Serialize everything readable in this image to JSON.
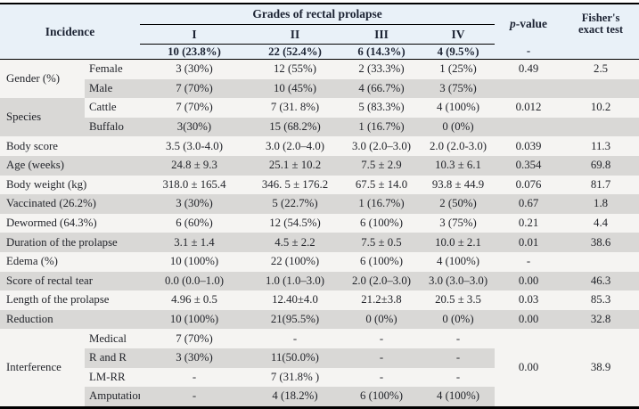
{
  "colors": {
    "header_bg": "#e9f1f8",
    "row_light": "#f5f4f2",
    "row_dark": "#d9d8d6",
    "border": "#000000",
    "header_ink": "#1c2333",
    "body_ink": "#23252b"
  },
  "table": {
    "header": {
      "incidence_label": "Incidence",
      "grades_label": "Grades of rectal prolapse",
      "grade_columns": [
        "I",
        "II",
        "III",
        "IV"
      ],
      "grade_counts": [
        "10 (23.8%)",
        "22 (52.4%)",
        "6 (14.3%)",
        "4 (9.5%)"
      ],
      "grade_counts_p": "-",
      "grade_counts_fisher": "",
      "p_italic": "p",
      "p_rest": "-value",
      "fisher_line1": "Fisher's",
      "fisher_line2": "exact test"
    },
    "rows": [
      {
        "group": {
          "label": "Gender (%)",
          "span": 2,
          "shade": "a"
        },
        "sub": "Female",
        "values": [
          "3 (30%)",
          "12 (55%)",
          "2 (33.3%)",
          "1 (25%)"
        ],
        "p": "0.49",
        "fisher": "2.5",
        "shade": "a"
      },
      {
        "sub": "Male",
        "values": [
          "7 (70%)",
          "10 (45%)",
          "4 (66.7%)",
          "3 (75%)"
        ],
        "p": "",
        "fisher": "",
        "shade": "b"
      },
      {
        "group": {
          "label": "Species",
          "span": 2,
          "shade": "b"
        },
        "sub": "Cattle",
        "values": [
          "7 (70%)",
          "7 (31. 8%)",
          "5 (83.3%)",
          "4 (100%)"
        ],
        "p": "0.012",
        "fisher": "10.2",
        "shade": "a"
      },
      {
        "sub": "Buffalo",
        "values": [
          "3(30%)",
          "15 (68.2%)",
          "1 (16.7%)",
          "0 (0%)"
        ],
        "p": "",
        "fisher": "",
        "shade": "b"
      },
      {
        "label": "Body score",
        "values": [
          "3.5 (3.0-4.0)",
          "3.0 (2.0–4.0)",
          "3.0 (2.0–3.0)",
          "2.0 (2.0-3.0)"
        ],
        "p": "0.039",
        "fisher": "11.3",
        "shade": "a"
      },
      {
        "label": "Age (weeks)",
        "values": [
          "24.8 ± 9.3",
          "25.1 ± 10.2",
          "7.5 ± 2.9",
          "10.3 ± 6.1"
        ],
        "p": "0.354",
        "fisher": "69.8",
        "shade": "b"
      },
      {
        "label": "Body weight (kg)",
        "values": [
          "318.0 ± 165.4",
          "346. 5 ± 176.2",
          "67.5 ± 14.0",
          "93.8 ± 44.9"
        ],
        "p": "0.076",
        "fisher": "81.7",
        "shade": "a"
      },
      {
        "label": "Vaccinated (26.2%)",
        "values": [
          "3 (30%)",
          "5 (22.7%)",
          "1 (16.7%)",
          "2 (50%)"
        ],
        "p": "0.67",
        "fisher": "1.8",
        "shade": "b"
      },
      {
        "label": "Dewormed (64.3%)",
        "values": [
          "6 (60%)",
          "12 (54.5%)",
          "6 (100%)",
          "3 (75%)"
        ],
        "p": "0.21",
        "fisher": "4.4",
        "shade": "a"
      },
      {
        "label": "Duration of the prolapse",
        "values": [
          "3.1 ± 1.4",
          "4.5 ± 2.2",
          "7.5 ± 0.5",
          "10.0 ± 2.1"
        ],
        "p": "0.01",
        "fisher": "38.6",
        "shade": "b"
      },
      {
        "label": "Edema (%)",
        "values": [
          "10 (100%)",
          "22 (100%)",
          "6 (100%)",
          "4 (100%)"
        ],
        "p": "-",
        "fisher": "",
        "shade": "a"
      },
      {
        "label": "Score of rectal tear",
        "values": [
          "0.0 (0.0–1.0)",
          "1.0 (1.0–3.0)",
          "2.0 (2.0–3.0)",
          "3.0 (3.0–3.0)"
        ],
        "p": "0.00",
        "fisher": "46.3",
        "shade": "b"
      },
      {
        "label": "Length of the prolapse",
        "values": [
          "4.96 ± 0.5",
          "12.40±4.0",
          "21.2±3.8",
          "20.5 ± 3.5"
        ],
        "p": "0.03",
        "fisher": "85.3",
        "shade": "a"
      },
      {
        "label": "Reduction",
        "values": [
          "10 (100%)",
          "21(95.5%)",
          "0 (0%)",
          "0 (0%)"
        ],
        "p": "0.00",
        "fisher": "32.8",
        "shade": "b"
      },
      {
        "group": {
          "label": "Interference",
          "span": 4,
          "shade": "a"
        },
        "sub": "Medical",
        "values": [
          "7 (70%)",
          "-",
          "-",
          "-"
        ],
        "pf_span": {
          "p": "0.00",
          "fisher": "38.9",
          "span": 4
        },
        "shade": "a"
      },
      {
        "sub": "R and R",
        "values": [
          "3 (30%)",
          "11(50.0%)",
          "-",
          "-"
        ],
        "no_pf": true,
        "shade": "b"
      },
      {
        "sub": "LM-RR",
        "values": [
          "-",
          "7 (31.8% )",
          "-",
          "-"
        ],
        "no_pf": true,
        "shade": "a"
      },
      {
        "sub": "Amputation",
        "values": [
          "-",
          "4 (18.2%)",
          "6 (100%)",
          "4 (100%)"
        ],
        "no_pf": true,
        "shade": "b"
      }
    ]
  }
}
